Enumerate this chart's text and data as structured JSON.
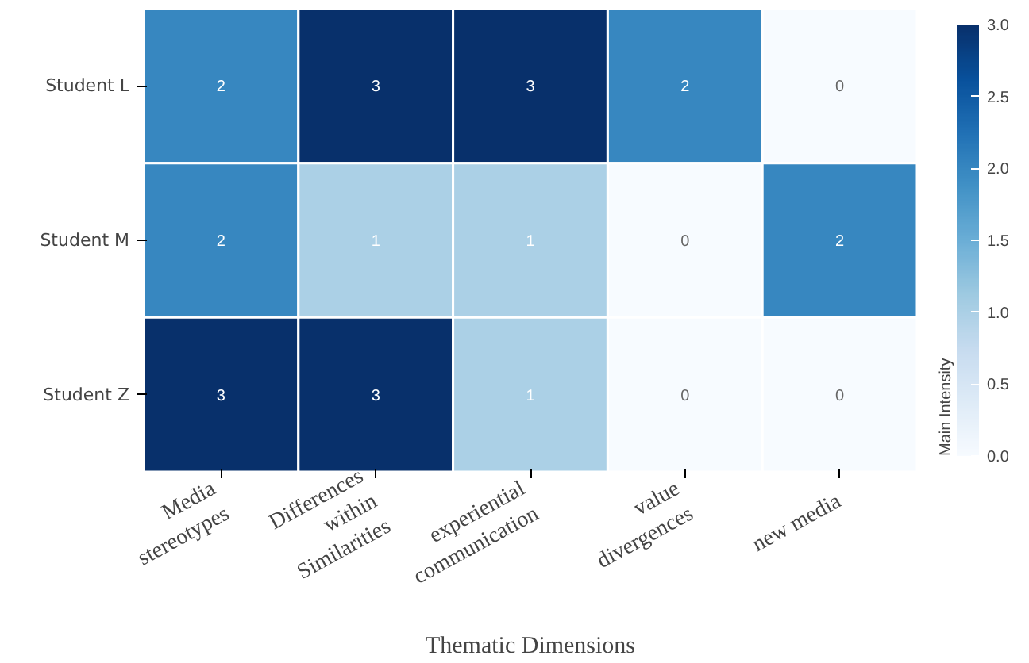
{
  "chart_data": {
    "type": "heatmap",
    "xlabel": "Thematic Dimensions",
    "clabel": "Main Intensity",
    "categories": [
      "Media\nstereotypes",
      "Differences\nwithin\nSimilarities",
      "experiential\ncommunication",
      "value\ndivergences",
      "new media"
    ],
    "y_categories": [
      "Student L",
      "Student M",
      "Student Z"
    ],
    "cells": [
      [
        2,
        3,
        3,
        2,
        0
      ],
      [
        2,
        1,
        1,
        0,
        2
      ],
      [
        3,
        3,
        1,
        0,
        0
      ]
    ],
    "clim": [
      0,
      3.0
    ],
    "cticks": [
      {
        "value": 0,
        "label": "0.0"
      },
      {
        "value": 0.5,
        "label": "0.5"
      },
      {
        "value": 1,
        "label": "1.0"
      },
      {
        "value": 1.5,
        "label": "1.5"
      },
      {
        "value": 2,
        "label": "2.0"
      },
      {
        "value": 2.5,
        "label": "2.5"
      },
      {
        "value": 3,
        "label": "3.0"
      }
    ],
    "data_labels": true
  }
}
